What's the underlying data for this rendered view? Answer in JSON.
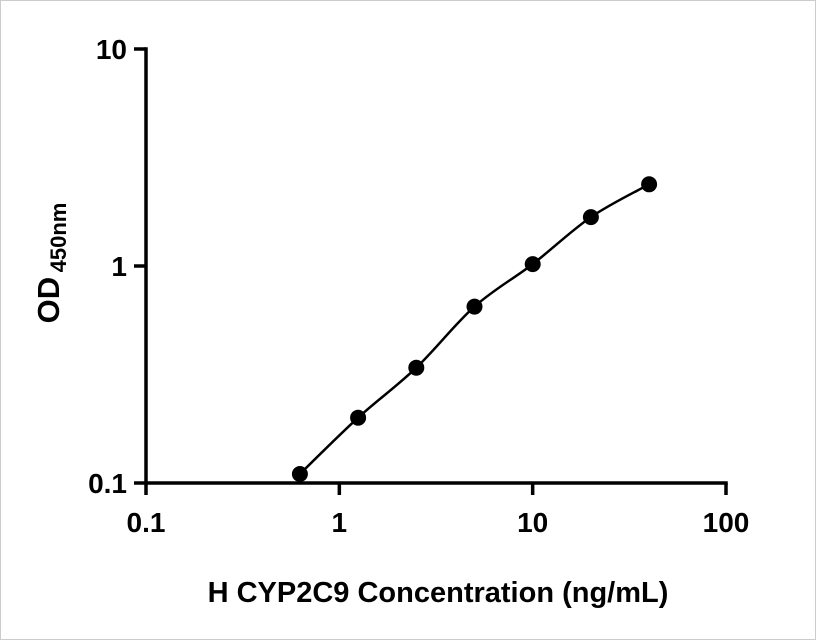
{
  "figure": {
    "background": "#ffffff",
    "border_color": "#cccccc"
  },
  "chart_data": {
    "type": "scatter",
    "title": "",
    "xlabel": "H CYP2C9 Concentration (ng/mL)",
    "ylabel_main": "OD",
    "ylabel_sub": "450nm",
    "x": [
      0.625,
      1.25,
      2.5,
      5,
      10,
      20,
      40
    ],
    "y": [
      0.11,
      0.2,
      0.34,
      0.65,
      1.02,
      1.68,
      2.38
    ],
    "xscale": "log",
    "yscale": "log",
    "xlim": [
      0.1,
      100
    ],
    "ylim": [
      0.1,
      10
    ],
    "x_ticks": [
      {
        "value": 0.1,
        "label": "0.1"
      },
      {
        "value": 1,
        "label": "1"
      },
      {
        "value": 10,
        "label": "10"
      },
      {
        "value": 100,
        "label": "100"
      }
    ],
    "y_ticks": [
      {
        "value": 0.1,
        "label": "0.1"
      },
      {
        "value": 1,
        "label": "1"
      },
      {
        "value": 10,
        "label": "10"
      }
    ],
    "grid": false,
    "legend": "none",
    "marker_color": "#000000",
    "line_color": "#000000",
    "axis_color": "#000000",
    "marker_radius": 8,
    "line_width": 2.5,
    "axis_width": 3.5
  }
}
